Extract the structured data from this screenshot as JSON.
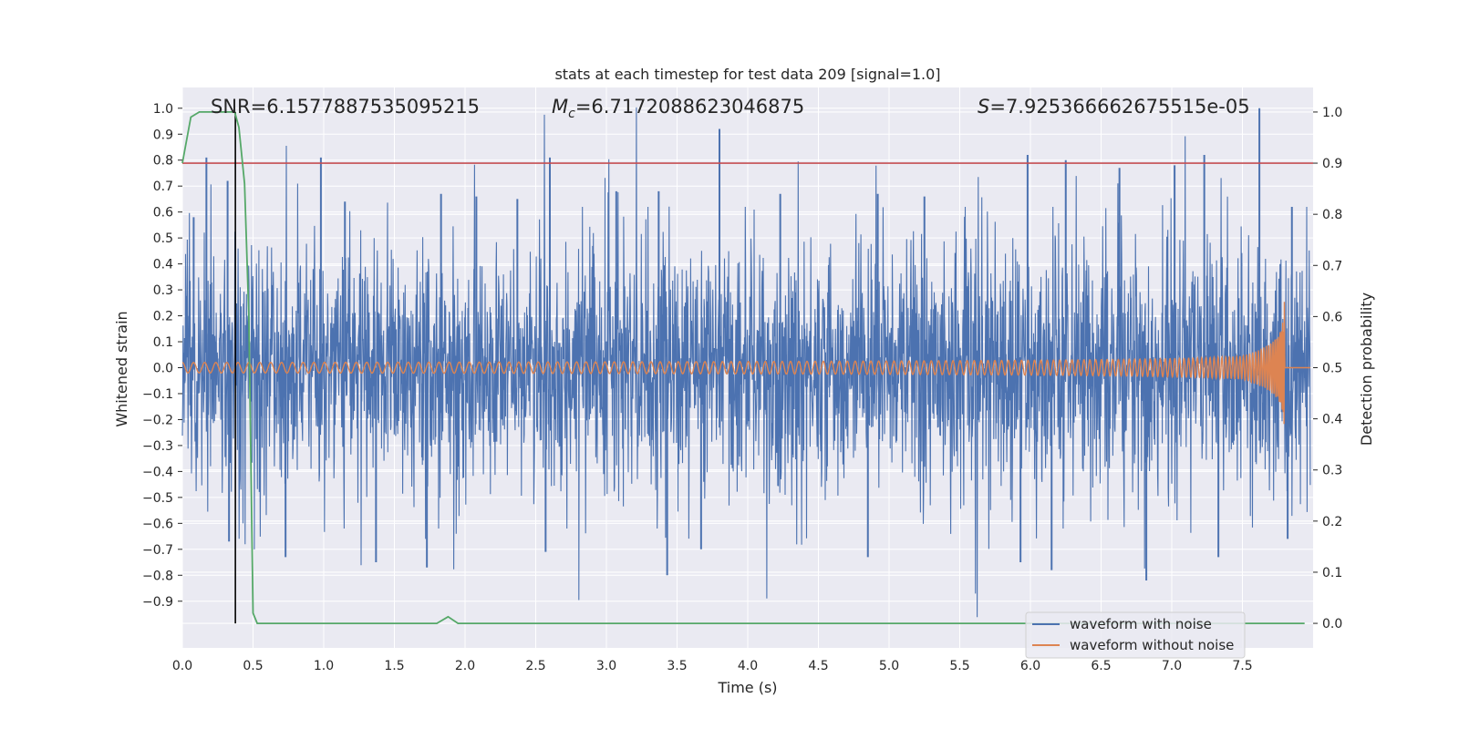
{
  "chart_data": {
    "type": "line",
    "title": "stats at each timestep for test data 209 [signal=1.0]",
    "xlabel": "Time (s)",
    "ylabel": "Whitened strain",
    "y2label": "Detection probability",
    "xlim": [
      0.0,
      8.0
    ],
    "ylim": [
      -1.08,
      1.08
    ],
    "y2lim": [
      -0.048,
      1.048
    ],
    "grid": true,
    "x_ticks": [
      "0.0",
      "0.5",
      "1.0",
      "1.5",
      "2.0",
      "2.5",
      "3.0",
      "3.5",
      "4.0",
      "4.5",
      "5.0",
      "5.5",
      "6.0",
      "6.5",
      "7.0",
      "7.5"
    ],
    "y_ticks": [
      "1.0",
      "0.9",
      "0.8",
      "0.7",
      "0.6",
      "0.5",
      "0.4",
      "0.3",
      "0.2",
      "0.1",
      "0.0",
      "−0.1",
      "−0.2",
      "−0.3",
      "−0.4",
      "−0.5",
      "−0.6",
      "−0.7",
      "−0.8",
      "−0.9"
    ],
    "y2_ticks": [
      "1.0",
      "0.9",
      "0.8",
      "0.7",
      "0.6",
      "0.5",
      "0.4",
      "0.3",
      "0.2",
      "0.1",
      "0.0"
    ],
    "stats": {
      "snr_label": "SNR=6.1577887535095215",
      "mc_symbol": "M",
      "mc_sub": "c",
      "mc_value": "=6.7172088623046875",
      "s_symbol": "S",
      "s_value": "=7.925366662675515e-05"
    },
    "threshold_line": {
      "y2": 0.9,
      "color": "#c44e52"
    },
    "marker_line": {
      "x": 0.375,
      "color": "#000000"
    },
    "series": [
      {
        "name": "waveform with noise",
        "color": "#4c72b0",
        "description_only": "dense noisy strain, amplitude ~0.35-0.5 typical, peaks up to ~1.0 (max near 7.6s, 0.92 near 3.8s) and down to ~-0.82",
        "spikes_up": [
          [
            0.08,
            0.58
          ],
          [
            0.17,
            0.81
          ],
          [
            0.32,
            0.72
          ],
          [
            0.98,
            0.81
          ],
          [
            1.15,
            0.64
          ],
          [
            1.83,
            0.67
          ],
          [
            2.08,
            0.66
          ],
          [
            2.37,
            0.65
          ],
          [
            2.6,
            0.81
          ],
          [
            3.07,
            0.68
          ],
          [
            3.37,
            0.68
          ],
          [
            3.8,
            0.92
          ],
          [
            4.23,
            0.67
          ],
          [
            4.92,
            0.67
          ],
          [
            5.25,
            0.66
          ],
          [
            5.98,
            0.82
          ],
          [
            6.25,
            0.8
          ],
          [
            6.63,
            0.77
          ],
          [
            7.02,
            0.78
          ],
          [
            7.23,
            0.82
          ],
          [
            7.62,
            1.0
          ],
          [
            7.85,
            0.62
          ]
        ],
        "spikes_down": [
          [
            0.33,
            -0.67
          ],
          [
            0.73,
            -0.73
          ],
          [
            1.37,
            -0.75
          ],
          [
            1.73,
            -0.77
          ],
          [
            2.57,
            -0.71
          ],
          [
            3.43,
            -0.8
          ],
          [
            3.67,
            -0.7
          ],
          [
            4.85,
            -0.73
          ],
          [
            5.93,
            -0.75
          ],
          [
            6.15,
            -0.78
          ],
          [
            6.82,
            -0.82
          ],
          [
            7.33,
            -0.73
          ],
          [
            7.82,
            -0.66
          ]
        ]
      },
      {
        "name": "waveform without noise",
        "color": "#dd8452",
        "description_only": "chirp: small oscillation amplitude ~0.02 rising to ~0.3 near merger at ~7.8 s, then flat at 0",
        "merger_time": 7.8,
        "start_amplitude": 0.02,
        "peak_amplitude": 0.31
      },
      {
        "name": "detection probability",
        "axis": "right",
        "color": "#55a868",
        "x": [
          0.0,
          0.06,
          0.12,
          0.2,
          0.3,
          0.37,
          0.4,
          0.44,
          0.47,
          0.5,
          0.53,
          0.6,
          1.0,
          1.5,
          1.8,
          1.88,
          1.95,
          2.5,
          4.0,
          6.0,
          7.0,
          7.94
        ],
        "y": [
          0.9,
          0.99,
          1.0,
          1.0,
          1.0,
          1.0,
          0.97,
          0.86,
          0.6,
          0.02,
          0.0,
          0.0,
          0.0,
          0.0,
          0.0,
          0.013,
          0.0,
          0.0,
          0.0,
          0.0,
          0.0,
          0.0
        ]
      }
    ],
    "legend": {
      "position": "lower-right",
      "entries": [
        "waveform with noise",
        "waveform without noise"
      ]
    }
  }
}
